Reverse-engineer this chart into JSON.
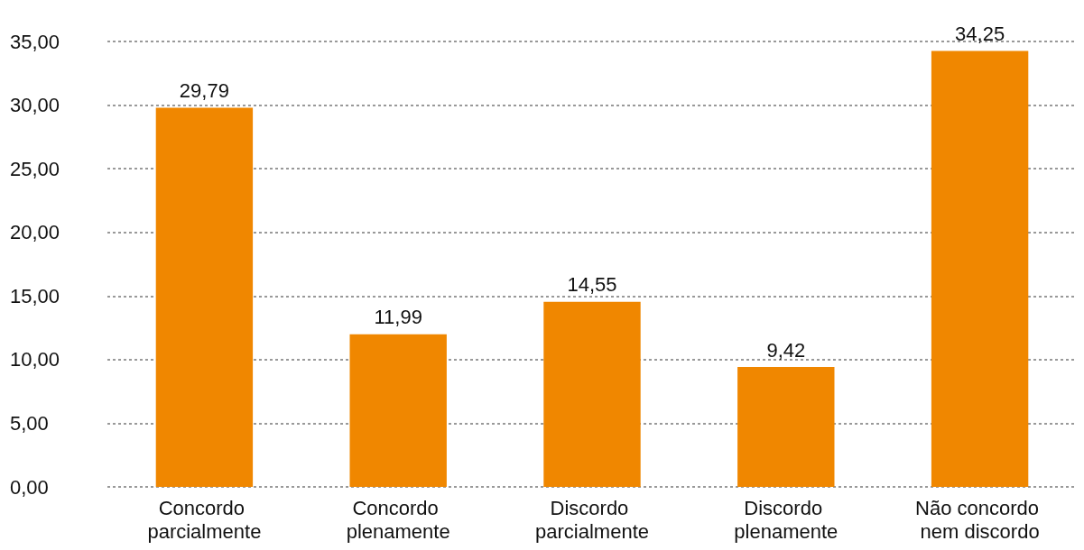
{
  "chart_data": {
    "type": "bar",
    "categories": [
      "Concordo parcialmente",
      "Concordo plenamente",
      "Discordo parcialmente",
      "Discordo plenamente",
      "Não concordo nem discordo"
    ],
    "values": [
      29.79,
      11.99,
      14.55,
      9.42,
      34.25
    ],
    "value_labels": [
      "29,79",
      "11,99",
      "14,55",
      "9,42",
      "34,25"
    ],
    "color": "#f08700",
    "ylim": [
      0,
      35
    ],
    "yticks": [
      {
        "value": 0,
        "label": "0,00"
      },
      {
        "value": 5,
        "label": "5,00"
      },
      {
        "value": 10,
        "label": "10,00"
      },
      {
        "value": 15,
        "label": "15,00"
      },
      {
        "value": 20,
        "label": "20,00"
      },
      {
        "value": 25,
        "label": "25,00"
      },
      {
        "value": 30,
        "label": "30,00"
      },
      {
        "value": 35,
        "label": "35,00"
      }
    ],
    "grid": "y"
  }
}
